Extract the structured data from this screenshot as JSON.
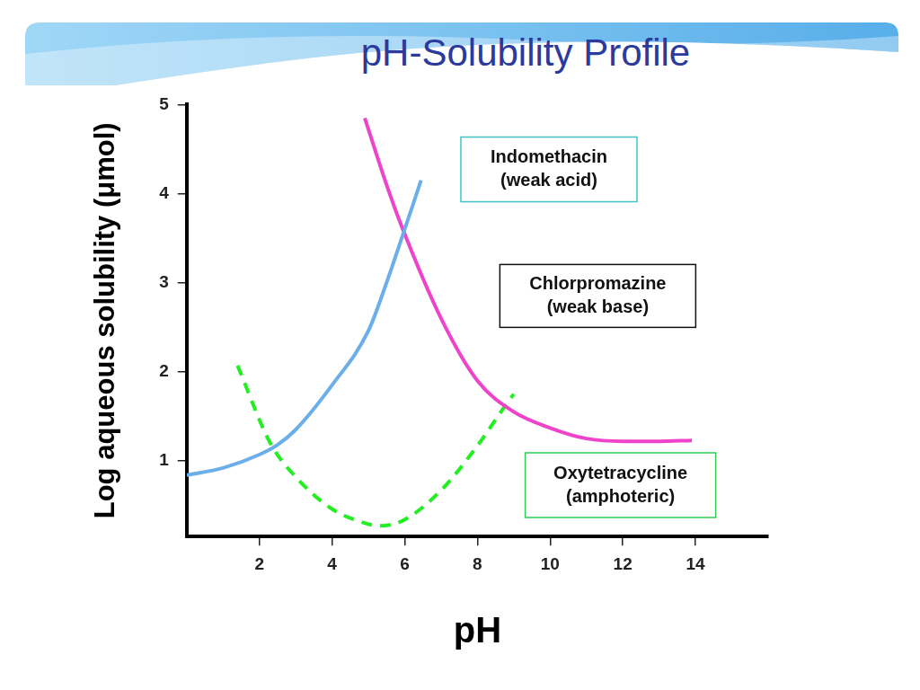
{
  "chart_data": {
    "type": "line",
    "title": "pH-Solubility Profile",
    "x_label": "pH",
    "y_label": "Log aqueous solubility (μmol)",
    "xlim": [
      0,
      16
    ],
    "xticks": [
      2,
      4,
      6,
      8,
      10,
      12,
      14
    ],
    "ylim": [
      0.15,
      5
    ],
    "yticks": [
      1,
      2,
      3,
      4,
      5
    ],
    "grid": false,
    "series": [
      {
        "name": "Indomethacin (weak acid)",
        "color": "#6aaeea",
        "line_style": "solid",
        "x": [
          0,
          1,
          2,
          2.5,
          3,
          4,
          5,
          5.5,
          6,
          6.45
        ],
        "values": [
          0.84,
          0.92,
          1.07,
          1.18,
          1.35,
          1.85,
          2.46,
          3.0,
          3.6,
          4.15
        ]
      },
      {
        "name": "Chlorpromazine (weak base)",
        "color": "#ee44cc",
        "line_style": "solid",
        "x": [
          4.9,
          5.5,
          5.9,
          7,
          8,
          9,
          10,
          11,
          12,
          13,
          13.9
        ],
        "values": [
          4.85,
          4.1,
          3.65,
          2.6,
          1.9,
          1.55,
          1.37,
          1.25,
          1.22,
          1.22,
          1.23
        ]
      },
      {
        "name": "Oxytetracycline (amphoteric)",
        "color": "#22ee22",
        "line_style": "dashed",
        "x": [
          1.4,
          2.3,
          3,
          4,
          5,
          5.3,
          6,
          7,
          8,
          8.8,
          9
        ],
        "values": [
          2.07,
          1.2,
          0.82,
          0.46,
          0.29,
          0.27,
          0.34,
          0.67,
          1.17,
          1.64,
          1.75
        ]
      }
    ]
  }
}
